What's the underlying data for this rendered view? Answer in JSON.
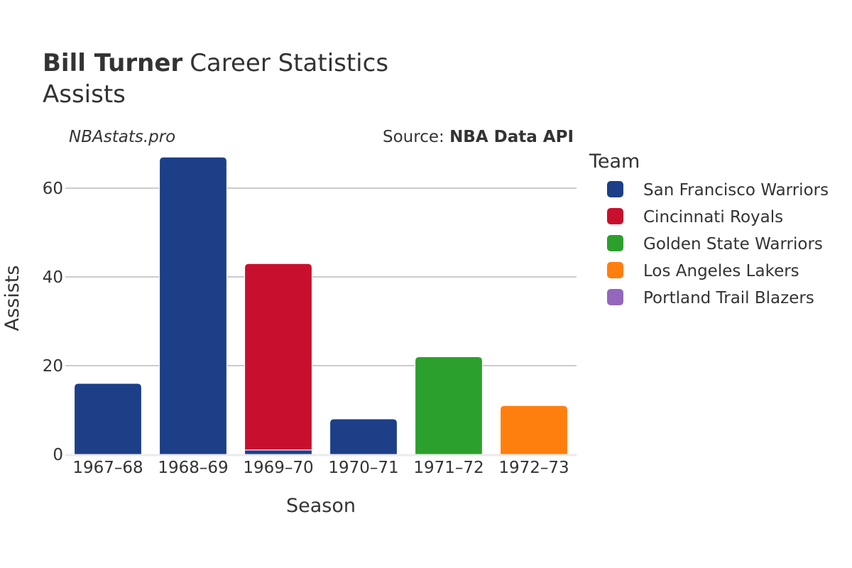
{
  "header": {
    "player_name": "Bill Turner",
    "title_rest": "Career Statistics",
    "subtitle": "Assists",
    "watermark": "NBAstats.pro",
    "source_prefix": "Source: ",
    "source_name": "NBA Data API"
  },
  "legend": {
    "title": "Team",
    "items": [
      {
        "label": "San Francisco Warriors",
        "color": "#1c3f87"
      },
      {
        "label": "Cincinnati Royals",
        "color": "#c8102e"
      },
      {
        "label": "Golden State Warriors",
        "color": "#2ca02c"
      },
      {
        "label": "Los Angeles Lakers",
        "color": "#ff7f0e"
      },
      {
        "label": "Portland Trail Blazers",
        "color": "#9467bd"
      }
    ]
  },
  "chart_data": {
    "type": "bar",
    "stacked": true,
    "xlabel": "Season",
    "ylabel": "Assists",
    "categories": [
      "1967–68",
      "1968–69",
      "1969–70",
      "1970–71",
      "1971–72",
      "1972–73"
    ],
    "yticks": [
      0,
      20,
      40,
      60
    ],
    "ylim": [
      0,
      70
    ],
    "grid": true,
    "legend_position": "right",
    "series": [
      {
        "name": "San Francisco Warriors",
        "color": "#1c3f87",
        "values": [
          16,
          67,
          1,
          8,
          0,
          0
        ]
      },
      {
        "name": "Cincinnati Royals",
        "color": "#c8102e",
        "values": [
          0,
          0,
          42,
          0,
          0,
          0
        ]
      },
      {
        "name": "Golden State Warriors",
        "color": "#2ca02c",
        "values": [
          0,
          0,
          0,
          0,
          22,
          0
        ]
      },
      {
        "name": "Los Angeles Lakers",
        "color": "#ff7f0e",
        "values": [
          0,
          0,
          0,
          0,
          0,
          11
        ]
      },
      {
        "name": "Portland Trail Blazers",
        "color": "#9467bd",
        "values": [
          0,
          0,
          0,
          0,
          0,
          0
        ]
      }
    ]
  }
}
